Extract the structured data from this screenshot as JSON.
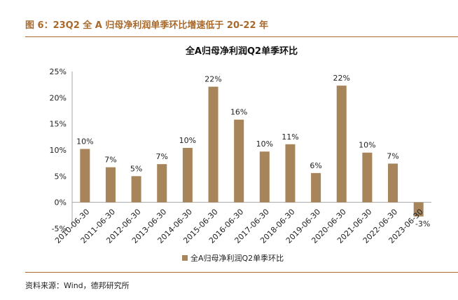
{
  "figure": {
    "title": "图 6：23Q2 全 A 归母净利润单季环比增速低于 20-22 年",
    "source": "资料来源：Wind，德邦研究所"
  },
  "colors": {
    "accent": "#a9692b",
    "bar": "#a78459",
    "axis": "#a6a6a6"
  },
  "chart_data": {
    "type": "bar",
    "title": "全A归母净利润Q2单季环比",
    "xlabel": "",
    "ylabel": "",
    "ylim": [
      -5,
      25
    ],
    "yticks": [
      "-5%",
      "0%",
      "5%",
      "10%",
      "15%",
      "20%",
      "25%"
    ],
    "ytick_values": [
      -5,
      0,
      5,
      10,
      15,
      20,
      25
    ],
    "categories": [
      "2010-06-30",
      "2011-06-30",
      "2012-06-30",
      "2013-06-30",
      "2014-06-30",
      "2015-06-30",
      "2016-06-30",
      "2017-06-30",
      "2018-06-30",
      "2019-06-30",
      "2020-06-30",
      "2021-06-30",
      "2022-06-30",
      "2023-06-30"
    ],
    "values": [
      10.2,
      6.7,
      5.0,
      7.3,
      10.4,
      22.1,
      15.8,
      9.7,
      11.1,
      5.6,
      22.3,
      9.5,
      7.4,
      -2.7
    ],
    "data_labels": [
      "10%",
      "7%",
      "5%",
      "7%",
      "10%",
      "22%",
      "16%",
      "10%",
      "11%",
      "6%",
      "22%",
      "10%",
      "7%",
      "-3%"
    ],
    "legend": {
      "position": "bottom",
      "entries": [
        "全A归母净利润Q2单季环比"
      ]
    }
  }
}
